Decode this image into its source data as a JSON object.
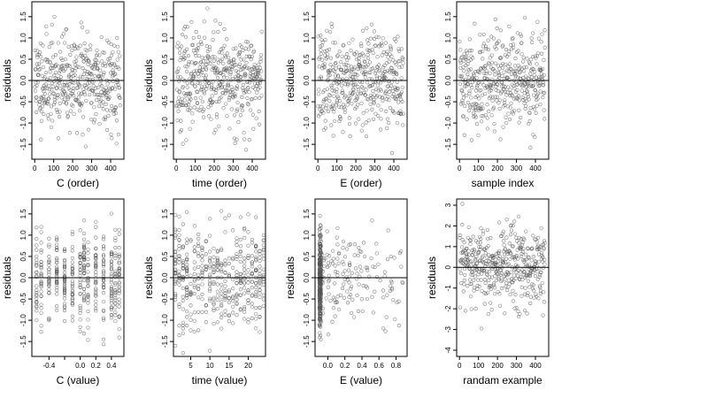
{
  "chart_data": [
    {
      "type": "scatter",
      "xlabel": "C (order)",
      "ylabel": "residuals",
      "xlim": [
        -15,
        470
      ],
      "ylim": [
        -1.85,
        1.85
      ],
      "xticks": [
        0,
        100,
        200,
        300,
        400
      ],
      "xtick_labels": [
        "0",
        "100",
        "200",
        "300",
        "400"
      ],
      "yticks": [
        -1.5,
        -1.0,
        -0.5,
        0.0,
        0.5,
        1.0,
        1.5
      ],
      "ytick_labels": [
        "-1.5",
        "-1.0",
        "-0.5",
        "0.0",
        "0.5",
        "1.0",
        "1.5"
      ],
      "reference_line_y": 0,
      "x_domain": [
        1,
        450
      ],
      "x_kind": "uniform",
      "points_count": 450,
      "y_sd": 0.55,
      "seed": 11,
      "marker": "open-circle",
      "marker_color": "#555555"
    },
    {
      "type": "scatter",
      "xlabel": "time (order)",
      "ylabel": "residuals",
      "xlim": [
        -15,
        470
      ],
      "ylim": [
        -1.85,
        1.85
      ],
      "xticks": [
        0,
        100,
        200,
        300,
        400
      ],
      "xtick_labels": [
        "0",
        "100",
        "200",
        "300",
        "400"
      ],
      "yticks": [
        -1.5,
        -1.0,
        -0.5,
        0.0,
        0.5,
        1.0,
        1.5
      ],
      "ytick_labels": [
        "-1.5",
        "-1.0",
        "-0.5",
        "0.0",
        "0.5",
        "1.0",
        "1.5"
      ],
      "reference_line_y": 0,
      "x_domain": [
        1,
        450
      ],
      "x_kind": "uniform",
      "points_count": 450,
      "y_sd": 0.55,
      "seed": 23,
      "marker": "open-circle",
      "marker_color": "#555555"
    },
    {
      "type": "scatter",
      "xlabel": "E (order)",
      "ylabel": "residuals",
      "xlim": [
        -15,
        470
      ],
      "ylim": [
        -1.85,
        1.85
      ],
      "xticks": [
        0,
        100,
        200,
        300,
        400
      ],
      "xtick_labels": [
        "0",
        "100",
        "200",
        "300",
        "400"
      ],
      "yticks": [
        -1.5,
        -1.0,
        -0.5,
        0.0,
        0.5,
        1.0,
        1.5
      ],
      "ytick_labels": [
        "-1.5",
        "-1.0",
        "-0.5",
        "0.0",
        "0.5",
        "1.0",
        "1.5"
      ],
      "reference_line_y": 0,
      "x_domain": [
        1,
        450
      ],
      "x_kind": "uniform",
      "points_count": 450,
      "y_sd": 0.55,
      "seed": 37,
      "marker": "open-circle",
      "marker_color": "#555555"
    },
    {
      "type": "scatter",
      "xlabel": "sample index",
      "ylabel": "residuals",
      "xlim": [
        -15,
        470
      ],
      "ylim": [
        -1.85,
        1.85
      ],
      "xticks": [
        0,
        100,
        200,
        300,
        400
      ],
      "xtick_labels": [
        "0",
        "100",
        "200",
        "300",
        "400"
      ],
      "yticks": [
        -1.5,
        -1.0,
        -0.5,
        0.0,
        0.5,
        1.0,
        1.5
      ],
      "ytick_labels": [
        "-1.5",
        "-1.0",
        "-0.5",
        "0.0",
        "0.5",
        "1.0",
        "1.5"
      ],
      "reference_line_y": 0,
      "x_domain": [
        1,
        450
      ],
      "x_kind": "uniform",
      "points_count": 450,
      "y_sd": 0.55,
      "seed": 41,
      "marker": "open-circle",
      "marker_color": "#555555"
    },
    {
      "type": "scatter",
      "xlabel": "C (value)",
      "ylabel": "residuals",
      "xlim": [
        -0.62,
        0.56
      ],
      "ylim": [
        -1.85,
        1.85
      ],
      "xticks": [
        -0.4,
        -0.2,
        0.0,
        0.2,
        0.4
      ],
      "xtick_labels": [
        "-0.4",
        "",
        "0.0",
        "0.2",
        "0.4"
      ],
      "yticks": [
        -1.5,
        -1.0,
        -0.5,
        0.0,
        0.5,
        1.0,
        1.5
      ],
      "ytick_labels": [
        "-1.5",
        "-1.0",
        "-0.5",
        "0.0",
        "0.5",
        "1.0",
        "1.5"
      ],
      "reference_line_y": 0,
      "x_kind": "levels",
      "x_levels": [
        -0.56,
        -0.5,
        -0.4,
        -0.3,
        -0.2,
        -0.1,
        0.0,
        0.05,
        0.1,
        0.2,
        0.3,
        0.4,
        0.45,
        0.5
      ],
      "points_count": 450,
      "y_sd": 0.55,
      "seed": 53,
      "marker": "open-circle",
      "marker_color": "#555555"
    },
    {
      "type": "scatter",
      "xlabel": "time (value)",
      "ylabel": "residuals",
      "xlim": [
        0.5,
        24.5
      ],
      "ylim": [
        -1.85,
        1.85
      ],
      "xticks": [
        5,
        10,
        15,
        20
      ],
      "xtick_labels": [
        "5",
        "10",
        "15",
        "20"
      ],
      "yticks": [
        -1.5,
        -1.0,
        -0.5,
        0.0,
        0.5,
        1.0,
        1.5
      ],
      "ytick_labels": [
        "-1.5",
        "-1.0",
        "-0.5",
        "0.0",
        "0.5",
        "1.0",
        "1.5"
      ],
      "reference_line_y": 0,
      "x_kind": "levels",
      "x_levels": [
        1,
        2,
        3,
        4,
        5,
        6,
        7,
        8,
        9,
        10,
        11,
        12,
        13,
        14,
        15,
        16,
        17,
        18,
        19,
        20,
        21,
        22,
        23,
        24
      ],
      "points_count": 450,
      "y_sd": 0.55,
      "seed": 67,
      "marker": "open-circle",
      "marker_color": "#555555"
    },
    {
      "type": "scatter",
      "xlabel": "E (value)",
      "ylabel": "residuals",
      "xlim": [
        -0.15,
        0.93
      ],
      "ylim": [
        -1.85,
        1.85
      ],
      "xticks": [
        0.0,
        0.2,
        0.4,
        0.6,
        0.8
      ],
      "xtick_labels": [
        "0.0",
        "0.2",
        "0.4",
        "0.6",
        "0.8"
      ],
      "yticks": [
        -1.5,
        -1.0,
        -0.5,
        0.0,
        0.5,
        1.0,
        1.5
      ],
      "ytick_labels": [
        "-1.5",
        "-1.0",
        "-0.5",
        "0.0",
        "0.5",
        "1.0",
        "1.5"
      ],
      "reference_line_y": 0,
      "x_domain": [
        -0.1,
        0.9
      ],
      "x_kind": "skewed",
      "points_count": 450,
      "y_sd": 0.55,
      "seed": 79,
      "marker": "open-circle",
      "marker_color": "#555555"
    },
    {
      "type": "scatter",
      "xlabel": "randam example",
      "ylabel": "residuals",
      "xlim": [
        -15,
        470
      ],
      "ylim": [
        -4.3,
        3.3
      ],
      "xticks": [
        0,
        100,
        200,
        300,
        400
      ],
      "xtick_labels": [
        "0",
        "100",
        "200",
        "300",
        "400"
      ],
      "yticks": [
        -4,
        -3,
        -2,
        -1,
        0,
        1,
        2,
        3
      ],
      "ytick_labels": [
        "-4",
        "-3",
        "-2",
        "-1",
        "0",
        "1",
        "2",
        "3"
      ],
      "reference_line_y": 0,
      "x_domain": [
        1,
        450
      ],
      "x_kind": "uniform",
      "points_count": 450,
      "y_sd": 1.0,
      "seed": 97,
      "marker": "open-circle",
      "marker_color": "#555555"
    }
  ]
}
